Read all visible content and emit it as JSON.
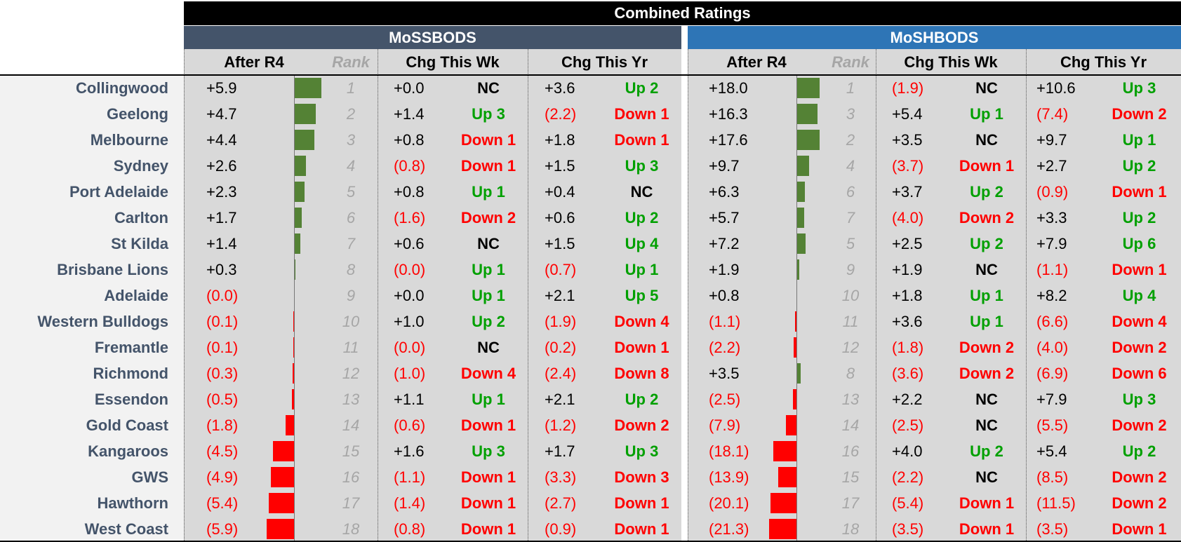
{
  "header": {
    "combined": "Combined Ratings",
    "mossbods": "MoSSBODS",
    "moshbods": "MoSHBODS"
  },
  "columns": {
    "after": "After R4",
    "rank": "Rank",
    "chg_wk": "Chg This Wk",
    "chg_yr": "Chg This Yr"
  },
  "colors": {
    "positive_bar": "#548235",
    "negative_bar": "#ff0000",
    "up": "#00a000",
    "down": "#ff0000"
  },
  "teams": [
    {
      "name": "Collingwood",
      "ss": {
        "after": 5.9,
        "after_t": "+5.9",
        "rank": "1",
        "wk": "+0.0",
        "wk_mv": "NC",
        "yr": "+3.6",
        "yr_mv": "Up 2"
      },
      "sh": {
        "after": 18.0,
        "after_t": "+18.0",
        "rank": "1",
        "wk": "(1.9)",
        "wk_mv": "NC",
        "yr": "+10.6",
        "yr_mv": "Up 3"
      }
    },
    {
      "name": "Geelong",
      "ss": {
        "after": 4.7,
        "after_t": "+4.7",
        "rank": "2",
        "wk": "+1.4",
        "wk_mv": "Up 3",
        "yr": "(2.2)",
        "yr_mv": "Down 1"
      },
      "sh": {
        "after": 16.3,
        "after_t": "+16.3",
        "rank": "3",
        "wk": "+5.4",
        "wk_mv": "Up 1",
        "yr": "(7.4)",
        "yr_mv": "Down 2"
      }
    },
    {
      "name": "Melbourne",
      "ss": {
        "after": 4.4,
        "after_t": "+4.4",
        "rank": "3",
        "wk": "+0.8",
        "wk_mv": "Down 1",
        "yr": "+1.8",
        "yr_mv": "Down 1"
      },
      "sh": {
        "after": 17.6,
        "after_t": "+17.6",
        "rank": "2",
        "wk": "+3.5",
        "wk_mv": "NC",
        "yr": "+9.7",
        "yr_mv": "Up 1"
      }
    },
    {
      "name": "Sydney",
      "ss": {
        "after": 2.6,
        "after_t": "+2.6",
        "rank": "4",
        "wk": "(0.8)",
        "wk_mv": "Down 1",
        "yr": "+1.5",
        "yr_mv": "Up 3"
      },
      "sh": {
        "after": 9.7,
        "after_t": "+9.7",
        "rank": "4",
        "wk": "(3.7)",
        "wk_mv": "Down 1",
        "yr": "+2.7",
        "yr_mv": "Up 2"
      }
    },
    {
      "name": "Port Adelaide",
      "ss": {
        "after": 2.3,
        "after_t": "+2.3",
        "rank": "5",
        "wk": "+0.8",
        "wk_mv": "Up 1",
        "yr": "+0.4",
        "yr_mv": "NC"
      },
      "sh": {
        "after": 6.3,
        "after_t": "+6.3",
        "rank": "6",
        "wk": "+3.7",
        "wk_mv": "Up 2",
        "yr": "(0.9)",
        "yr_mv": "Down 1"
      }
    },
    {
      "name": "Carlton",
      "ss": {
        "after": 1.7,
        "after_t": "+1.7",
        "rank": "6",
        "wk": "(1.6)",
        "wk_mv": "Down 2",
        "yr": "+0.6",
        "yr_mv": "Up 2"
      },
      "sh": {
        "after": 5.7,
        "after_t": "+5.7",
        "rank": "7",
        "wk": "(4.0)",
        "wk_mv": "Down 2",
        "yr": "+3.3",
        "yr_mv": "Up 2"
      }
    },
    {
      "name": "St Kilda",
      "ss": {
        "after": 1.4,
        "after_t": "+1.4",
        "rank": "7",
        "wk": "+0.6",
        "wk_mv": "NC",
        "yr": "+1.5",
        "yr_mv": "Up 4"
      },
      "sh": {
        "after": 7.2,
        "after_t": "+7.2",
        "rank": "5",
        "wk": "+2.5",
        "wk_mv": "Up 2",
        "yr": "+7.9",
        "yr_mv": "Up 6"
      }
    },
    {
      "name": "Brisbane Lions",
      "ss": {
        "after": 0.3,
        "after_t": "+0.3",
        "rank": "8",
        "wk": "(0.0)",
        "wk_mv": "Up 1",
        "yr": "(0.7)",
        "yr_mv": "Up 1"
      },
      "sh": {
        "after": 1.9,
        "after_t": "+1.9",
        "rank": "9",
        "wk": "+1.9",
        "wk_mv": "NC",
        "yr": "(1.1)",
        "yr_mv": "Down 1"
      }
    },
    {
      "name": "Adelaide",
      "ss": {
        "after": -0.0,
        "after_t": "(0.0)",
        "rank": "9",
        "wk": "+0.0",
        "wk_mv": "Up 1",
        "yr": "+2.1",
        "yr_mv": "Up 5"
      },
      "sh": {
        "after": 0.8,
        "after_t": "+0.8",
        "rank": "10",
        "wk": "+1.8",
        "wk_mv": "Up 1",
        "yr": "+8.2",
        "yr_mv": "Up 4"
      }
    },
    {
      "name": "Western Bulldogs",
      "ss": {
        "after": -0.1,
        "after_t": "(0.1)",
        "rank": "10",
        "wk": "+1.0",
        "wk_mv": "Up 2",
        "yr": "(1.9)",
        "yr_mv": "Down 4"
      },
      "sh": {
        "after": -1.1,
        "after_t": "(1.1)",
        "rank": "11",
        "wk": "+3.6",
        "wk_mv": "Up 1",
        "yr": "(6.6)",
        "yr_mv": "Down 4"
      }
    },
    {
      "name": "Fremantle",
      "ss": {
        "after": -0.1,
        "after_t": "(0.1)",
        "rank": "11",
        "wk": "(0.0)",
        "wk_mv": "NC",
        "yr": "(0.2)",
        "yr_mv": "Down 1"
      },
      "sh": {
        "after": -2.2,
        "after_t": "(2.2)",
        "rank": "12",
        "wk": "(1.8)",
        "wk_mv": "Down 2",
        "yr": "(4.0)",
        "yr_mv": "Down 2"
      }
    },
    {
      "name": "Richmond",
      "ss": {
        "after": -0.3,
        "after_t": "(0.3)",
        "rank": "12",
        "wk": "(1.0)",
        "wk_mv": "Down 4",
        "yr": "(2.4)",
        "yr_mv": "Down 8"
      },
      "sh": {
        "after": 3.5,
        "after_t": "+3.5",
        "rank": "8",
        "wk": "(3.6)",
        "wk_mv": "Down 2",
        "yr": "(6.9)",
        "yr_mv": "Down 6"
      }
    },
    {
      "name": "Essendon",
      "ss": {
        "after": -0.5,
        "after_t": "(0.5)",
        "rank": "13",
        "wk": "+1.1",
        "wk_mv": "Up 1",
        "yr": "+2.1",
        "yr_mv": "Up 2"
      },
      "sh": {
        "after": -2.5,
        "after_t": "(2.5)",
        "rank": "13",
        "wk": "+2.2",
        "wk_mv": "NC",
        "yr": "+7.9",
        "yr_mv": "Up 3"
      }
    },
    {
      "name": "Gold Coast",
      "ss": {
        "after": -1.8,
        "after_t": "(1.8)",
        "rank": "14",
        "wk": "(0.6)",
        "wk_mv": "Down 1",
        "yr": "(1.2)",
        "yr_mv": "Down 2"
      },
      "sh": {
        "after": -7.9,
        "after_t": "(7.9)",
        "rank": "14",
        "wk": "(2.5)",
        "wk_mv": "NC",
        "yr": "(5.5)",
        "yr_mv": "Down 2"
      }
    },
    {
      "name": "Kangaroos",
      "ss": {
        "after": -4.5,
        "after_t": "(4.5)",
        "rank": "15",
        "wk": "+1.6",
        "wk_mv": "Up 3",
        "yr": "+1.7",
        "yr_mv": "Up 3"
      },
      "sh": {
        "after": -18.1,
        "after_t": "(18.1)",
        "rank": "16",
        "wk": "+4.0",
        "wk_mv": "Up 2",
        "yr": "+5.4",
        "yr_mv": "Up 2"
      }
    },
    {
      "name": "GWS",
      "ss": {
        "after": -4.9,
        "after_t": "(4.9)",
        "rank": "16",
        "wk": "(1.1)",
        "wk_mv": "Down 1",
        "yr": "(3.3)",
        "yr_mv": "Down 3"
      },
      "sh": {
        "after": -13.9,
        "after_t": "(13.9)",
        "rank": "15",
        "wk": "(2.2)",
        "wk_mv": "NC",
        "yr": "(8.5)",
        "yr_mv": "Down 2"
      }
    },
    {
      "name": "Hawthorn",
      "ss": {
        "after": -5.4,
        "after_t": "(5.4)",
        "rank": "17",
        "wk": "(1.4)",
        "wk_mv": "Down 1",
        "yr": "(2.7)",
        "yr_mv": "Down 1"
      },
      "sh": {
        "after": -20.1,
        "after_t": "(20.1)",
        "rank": "17",
        "wk": "(5.4)",
        "wk_mv": "Down 1",
        "yr": "(11.5)",
        "yr_mv": "Down 2"
      }
    },
    {
      "name": "West Coast",
      "ss": {
        "after": -5.9,
        "after_t": "(5.9)",
        "rank": "18",
        "wk": "(0.8)",
        "wk_mv": "Down 1",
        "yr": "(0.9)",
        "yr_mv": "Down 1"
      },
      "sh": {
        "after": -21.3,
        "after_t": "(21.3)",
        "rank": "18",
        "wk": "(3.5)",
        "wk_mv": "Down 1",
        "yr": "(3.5)",
        "yr_mv": "Down 1"
      }
    }
  ]
}
